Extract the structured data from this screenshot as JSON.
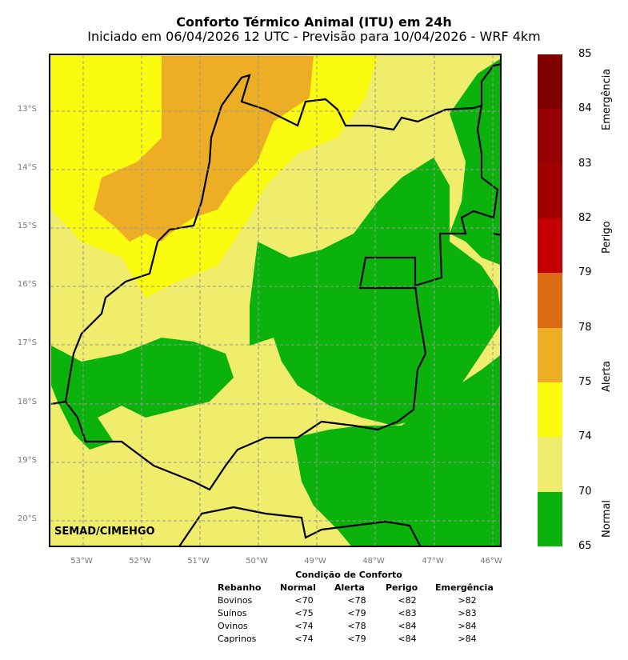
{
  "title": "Conforto Térmico Animal (ITU) em 24h",
  "subtitle": "Iniciado em 06/04/2026 12 UTC - Previsão para 10/04/2026 - WRF 4km",
  "map": {
    "credit": "SEMAD/CIMEHGO",
    "lat_labels": [
      "13°S",
      "14°S",
      "15°S",
      "16°S",
      "17°S",
      "18°S",
      "19°S",
      "20°S"
    ],
    "lon_labels": [
      "53°W",
      "52°W",
      "51°W",
      "50°W",
      "49°W",
      "48°W",
      "47°W",
      "46°W"
    ],
    "colors": {
      "normal": "#0bb20b",
      "light": "#f0ec6c",
      "yellow": "#fbfb0f",
      "orange": "#edae25",
      "border": "#000000"
    }
  },
  "colorbar": {
    "ticks": [
      "85",
      "84",
      "83",
      "82",
      "79",
      "78",
      "75",
      "74",
      "70",
      "65"
    ],
    "segments": [
      {
        "range": "84-85",
        "color": "#800000"
      },
      {
        "range": "83-84",
        "color": "#950000"
      },
      {
        "range": "82-83",
        "color": "#a30000"
      },
      {
        "range": "79-82",
        "color": "#c40000"
      },
      {
        "range": "78-79",
        "color": "#dc6a12"
      },
      {
        "range": "75-78",
        "color": "#edae25"
      },
      {
        "range": "74-75",
        "color": "#fbfb0f"
      },
      {
        "range": "70-74",
        "color": "#f0ec6c"
      },
      {
        "range": "65-70",
        "color": "#0bb20b"
      }
    ],
    "labels": [
      "Emergência",
      "Perigo",
      "Alerta",
      "Normal"
    ]
  },
  "table": {
    "caption": "Condição de Conforto",
    "headers": [
      "Rebanho",
      "Normal",
      "Alerta",
      "Perigo",
      "Emergência"
    ],
    "rows": [
      [
        "Bovinos",
        "<70",
        "<78",
        "<82",
        ">82"
      ],
      [
        "Suínos",
        "<75",
        "<79",
        "<83",
        ">83"
      ],
      [
        "Ovinos",
        "<74",
        "<78",
        "<84",
        ">84"
      ],
      [
        "Caprinos",
        "<74",
        "<79",
        "<84",
        ">84"
      ]
    ]
  }
}
